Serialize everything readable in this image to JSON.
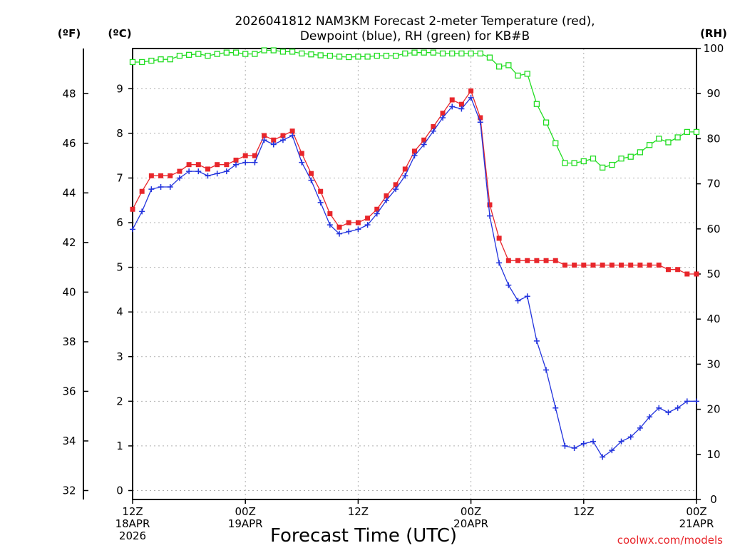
{
  "chart_data": {
    "type": "line",
    "title_lines": [
      "2026041812 NAM3KM Forecast 2-meter Temperature (red),",
      "Dewpoint (blue), RH (green) for KB#B"
    ],
    "xlabel": "Forecast Time (UTC)",
    "credit": "coolwx.com/models",
    "units": {
      "fahrenheit": "(ºF)",
      "celsius": "(ºC)",
      "rh": "(RH)"
    },
    "x_hours_range": [
      0,
      60
    ],
    "x_ticks": [
      {
        "hour": 0,
        "lines": [
          "12Z",
          "18APR",
          "2026"
        ]
      },
      {
        "hour": 12,
        "lines": [
          "00Z",
          "19APR"
        ]
      },
      {
        "hour": 24,
        "lines": [
          "12Z"
        ]
      },
      {
        "hour": 36,
        "lines": [
          "00Z",
          "20APR"
        ]
      },
      {
        "hour": 48,
        "lines": [
          "12Z"
        ]
      },
      {
        "hour": 60,
        "lines": [
          "00Z",
          "21APR"
        ]
      }
    ],
    "c_range": [
      -0.2,
      9.9
    ],
    "c_ticks": [
      "0",
      "1",
      "2",
      "3",
      "4",
      "5",
      "6",
      "7",
      "8",
      "9"
    ],
    "f_ticks": [
      "32",
      "34",
      "36",
      "38",
      "40",
      "42",
      "44",
      "46",
      "48"
    ],
    "rh_range": [
      0,
      100
    ],
    "rh_ticks": [
      "0",
      "10",
      "20",
      "30",
      "40",
      "50",
      "60",
      "70",
      "80",
      "90",
      "100"
    ],
    "series": [
      {
        "name": "Temperature (°C)",
        "color": "#e8262b",
        "marker": "filled-square",
        "values": [
          6.3,
          6.7,
          7.05,
          7.05,
          7.05,
          7.15,
          7.3,
          7.3,
          7.2,
          7.3,
          7.3,
          7.4,
          7.5,
          7.5,
          7.95,
          7.85,
          7.95,
          8.05,
          7.55,
          7.1,
          6.7,
          6.2,
          5.9,
          6.0,
          6.0,
          6.1,
          6.3,
          6.6,
          6.85,
          7.2,
          7.6,
          7.85,
          8.15,
          8.45,
          8.75,
          8.65,
          8.95,
          8.35,
          6.4,
          5.65,
          5.15,
          5.15,
          5.15,
          5.15,
          5.15,
          5.15,
          5.05,
          5.05,
          5.05,
          5.05,
          5.05,
          5.05,
          5.05,
          5.05,
          5.05,
          5.05,
          5.05,
          4.95,
          4.95,
          4.85,
          4.85
        ]
      },
      {
        "name": "Dewpoint (°C)",
        "color": "#2233dd",
        "marker": "plus",
        "values": [
          5.85,
          6.25,
          6.75,
          6.8,
          6.8,
          7.0,
          7.15,
          7.15,
          7.05,
          7.1,
          7.15,
          7.3,
          7.35,
          7.35,
          7.85,
          7.75,
          7.85,
          7.95,
          7.35,
          6.95,
          6.45,
          5.95,
          5.75,
          5.8,
          5.85,
          5.95,
          6.2,
          6.5,
          6.75,
          7.05,
          7.5,
          7.75,
          8.05,
          8.35,
          8.6,
          8.55,
          8.8,
          8.25,
          6.15,
          5.1,
          4.6,
          4.25,
          4.35,
          3.35,
          2.7,
          1.85,
          1.0,
          0.95,
          1.05,
          1.1,
          0.75,
          0.9,
          1.1,
          1.2,
          1.4,
          1.65,
          1.85,
          1.75,
          1.85,
          2.0,
          2.0
        ]
      },
      {
        "name": "RH (%)",
        "color": "#22dd22",
        "marker": "open-square",
        "values": [
          97,
          97,
          97.3,
          97.6,
          97.6,
          98.4,
          98.6,
          98.8,
          98.4,
          98.8,
          99.1,
          99.1,
          98.8,
          98.8,
          99.6,
          99.6,
          99.3,
          99.3,
          98.9,
          98.7,
          98.5,
          98.4,
          98.2,
          98.1,
          98.2,
          98.2,
          98.4,
          98.4,
          98.4,
          98.9,
          99.1,
          99.1,
          99.1,
          98.9,
          98.9,
          98.9,
          98.9,
          98.9,
          98.0,
          96.0,
          96.3,
          94.0,
          94.4,
          87.7,
          83.6,
          79.0,
          74.6,
          74.6,
          75.0,
          75.6,
          73.6,
          74.2,
          75.6,
          76.0,
          77.0,
          78.6,
          80.0,
          79.2,
          80.3,
          81.5,
          81.5
        ]
      }
    ]
  }
}
